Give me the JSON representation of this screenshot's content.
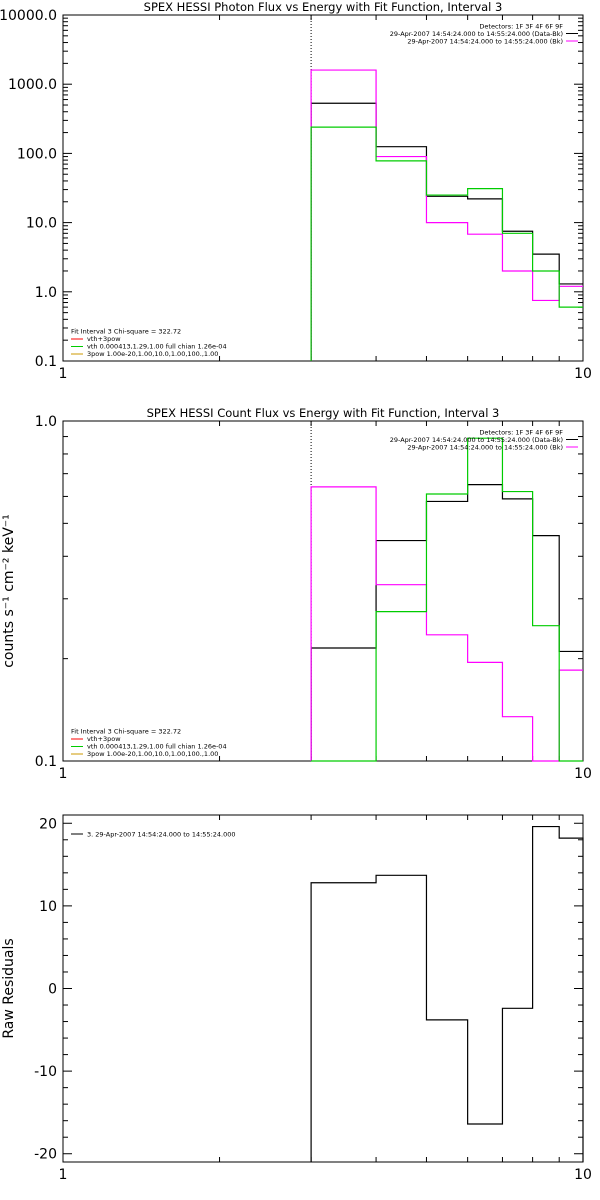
{
  "chart_data": [
    {
      "type": "line",
      "title": "SPEX HESSI Photon Flux vs Energy with Fit Function, Interval 3",
      "xlabel": "",
      "ylabel": "",
      "xscale": "log",
      "yscale": "log",
      "xlim": [
        1,
        10
      ],
      "ylim": [
        0.1,
        10000
      ],
      "xtick_labels": [
        {
          "v": 1,
          "t": "1"
        },
        {
          "v": 10,
          "t": "10"
        }
      ],
      "ytick_labels": [
        {
          "v": 10000,
          "t": "10000.0"
        },
        {
          "v": 1000,
          "t": "1000.0"
        },
        {
          "v": 100,
          "t": "100.0"
        },
        {
          "v": 10,
          "t": "10.0"
        },
        {
          "v": 1,
          "t": "1.0"
        },
        {
          "v": 0.1,
          "t": "0.1"
        }
      ],
      "marker_x": 3,
      "bin_edges": [
        3,
        4,
        5,
        6,
        7,
        8,
        9,
        10
      ],
      "legend_top": {
        "placement": "top-right",
        "lines": [
          {
            "text": "Detectors: 1F 3F 4F 6F 9F",
            "color": ""
          },
          {
            "text": "29-Apr-2007 14:54:24.000 to 14:55:24.000 (Data-Bk)",
            "color": "#000000"
          },
          {
            "text": "29-Apr-2007 14:54:24.000 to 14:55:24.000 (Bk)",
            "color": "#ff00ff"
          }
        ]
      },
      "legend_bottom": {
        "placement": "bottom-left",
        "lines": [
          {
            "text": "Fit Interval  3    Chi-square = 322.72",
            "color": ""
          },
          {
            "text": "vth+3pow",
            "color": "#ff0000"
          },
          {
            "text": "vth 0.000413,1.29,1.00   full chian 1.26e-04",
            "color": "#00cc00"
          },
          {
            "text": "3pow 1.00e-20,1.00,10.0,1.00,100.,1.00",
            "color": "#cc9900"
          }
        ]
      },
      "series": [
        {
          "color": "#000000",
          "values": [
            530,
            125,
            24,
            22,
            7.5,
            3.5,
            1.3
          ]
        },
        {
          "color": "#ff00ff",
          "values": [
            1600,
            90,
            10,
            6.8,
            2.0,
            0.75,
            1.2
          ]
        },
        {
          "color": "#00cc00",
          "values": [
            240,
            78,
            25,
            31,
            7.0,
            2.0,
            0.6
          ]
        }
      ]
    },
    {
      "type": "line",
      "title": "SPEX HESSI Count Flux vs Energy with Fit Function, Interval 3",
      "xlabel": "",
      "ylabel": "counts s⁻¹ cm⁻² keV⁻¹",
      "xscale": "log",
      "yscale": "log",
      "xlim": [
        1,
        10
      ],
      "ylim": [
        0.1,
        1.0
      ],
      "xtick_labels": [
        {
          "v": 1,
          "t": "1"
        },
        {
          "v": 10,
          "t": "10"
        }
      ],
      "ytick_labels": [
        {
          "v": 1.0,
          "t": "1.0"
        },
        {
          "v": 0.1,
          "t": "0.1"
        }
      ],
      "marker_x": 3,
      "bin_edges": [
        3,
        4,
        5,
        6,
        7,
        8,
        9,
        10
      ],
      "legend_top": {
        "placement": "top-right",
        "lines": [
          {
            "text": "Detectors: 1F 3F 4F 6F 9F",
            "color": ""
          },
          {
            "text": "29-Apr-2007 14:54:24.000 to 14:55:24.000 (Data-Bk)",
            "color": "#000000"
          },
          {
            "text": "29-Apr-2007 14:54:24.000 to 14:55:24.000 (Bk)",
            "color": "#ff00ff"
          }
        ]
      },
      "legend_bottom": {
        "placement": "bottom-left",
        "lines": [
          {
            "text": "Fit Interval  3    Chi-square = 322.72",
            "color": ""
          },
          {
            "text": "vth+3pow",
            "color": "#ff0000"
          },
          {
            "text": "vth 0.000413,1.29,1.00   full chian 1.26e-04",
            "color": "#00cc00"
          },
          {
            "text": "3pow 1.00e-20,1.00,10.0,1.00,100.,1.00",
            "color": "#cc9900"
          }
        ]
      },
      "series": [
        {
          "color": "#000000",
          "values": [
            0.215,
            0.445,
            0.58,
            0.65,
            0.59,
            0.46,
            0.21
          ]
        },
        {
          "color": "#ff00ff",
          "values": [
            0.64,
            0.33,
            0.235,
            0.195,
            0.135,
            0.1,
            0.185
          ]
        },
        {
          "color": "#00cc00",
          "values": [
            0.1,
            0.275,
            0.61,
            0.89,
            0.62,
            0.25,
            0.1
          ]
        }
      ]
    },
    {
      "type": "line",
      "title": "",
      "xlabel": "",
      "ylabel": "Raw Residuals",
      "xscale": "log",
      "yscale": "linear",
      "xlim": [
        1,
        10
      ],
      "ylim": [
        -21,
        21
      ],
      "xtick_labels": [
        {
          "v": 1,
          "t": "1"
        },
        {
          "v": 10,
          "t": "10"
        }
      ],
      "ytick_labels": [
        {
          "v": 20,
          "t": "20"
        },
        {
          "v": 10,
          "t": "10"
        },
        {
          "v": 0,
          "t": "0"
        },
        {
          "v": -10,
          "t": "-10"
        },
        {
          "v": -20,
          "t": "-20"
        }
      ],
      "marker_x": null,
      "bin_edges": [
        3,
        4,
        5,
        6,
        7,
        8,
        9,
        10
      ],
      "legend_top": {
        "placement": "top-left",
        "lines": [
          {
            "text": "3. 29-Apr-2007 14:54:24.000 to 14:55:24.000",
            "color": "#000000"
          }
        ]
      },
      "legend_bottom": {
        "placement": "bottom-left",
        "lines": []
      },
      "series": [
        {
          "color": "#000000",
          "values": [
            12.8,
            13.7,
            -3.8,
            -16.4,
            -2.4,
            19.6,
            18.2
          ]
        }
      ]
    }
  ]
}
